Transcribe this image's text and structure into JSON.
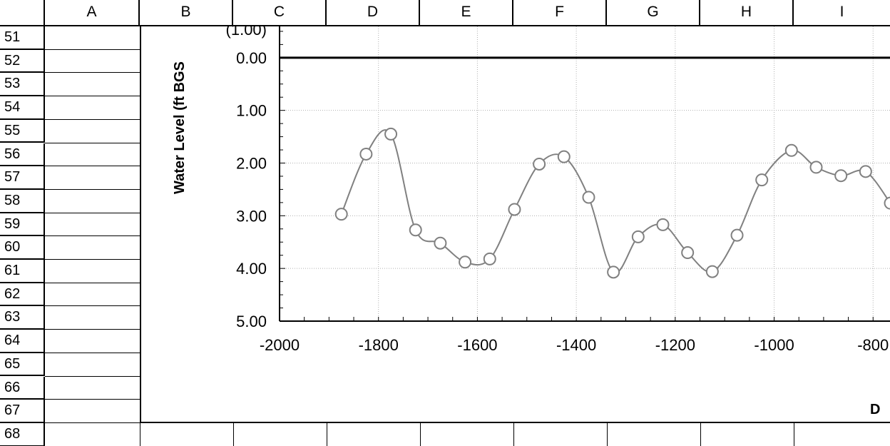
{
  "columns": [
    "A",
    "B",
    "C",
    "D",
    "E",
    "F",
    "G",
    "H",
    "I"
  ],
  "rows": [
    "51",
    "52",
    "53",
    "54",
    "55",
    "56",
    "57",
    "58",
    "59",
    "60",
    "61",
    "62",
    "63",
    "64",
    "65",
    "66",
    "67",
    "68"
  ],
  "chart_data": {
    "type": "scatter",
    "ylabel": "Water Level (ft BGS",
    "xlabel": "D",
    "y_top_partial_label": "(1.00)",
    "xlim": [
      -2000,
      -800
    ],
    "ylim": [
      5.0,
      -1.0
    ],
    "y_reversed": true,
    "grid": true,
    "x_ticks": [
      "-2000",
      "-1800",
      "-1600",
      "-1400",
      "-1200",
      "-1000",
      "-800"
    ],
    "y_ticks": [
      "0.00",
      "1.00",
      "2.00",
      "3.00",
      "4.00",
      "5.00"
    ],
    "series": [
      {
        "x": [
          -1875,
          -1825,
          -1775,
          -1725,
          -1675,
          -1625,
          -1575,
          -1525,
          -1475,
          -1425,
          -1375,
          -1325,
          -1275,
          -1225,
          -1175,
          -1125,
          -1075,
          -1025,
          -965,
          -915,
          -865,
          -815,
          -765
        ],
        "y": [
          2.97,
          1.83,
          1.45,
          3.27,
          3.52,
          3.88,
          3.82,
          2.88,
          2.02,
          1.88,
          2.65,
          4.07,
          3.4,
          3.17,
          3.7,
          4.06,
          3.37,
          2.32,
          1.76,
          2.08,
          2.24,
          2.16,
          2.76
        ]
      }
    ],
    "colors": {
      "line": "#808080",
      "marker_fill": "#ffffff",
      "marker_stroke": "#808080",
      "zero_line": "#000000"
    }
  }
}
